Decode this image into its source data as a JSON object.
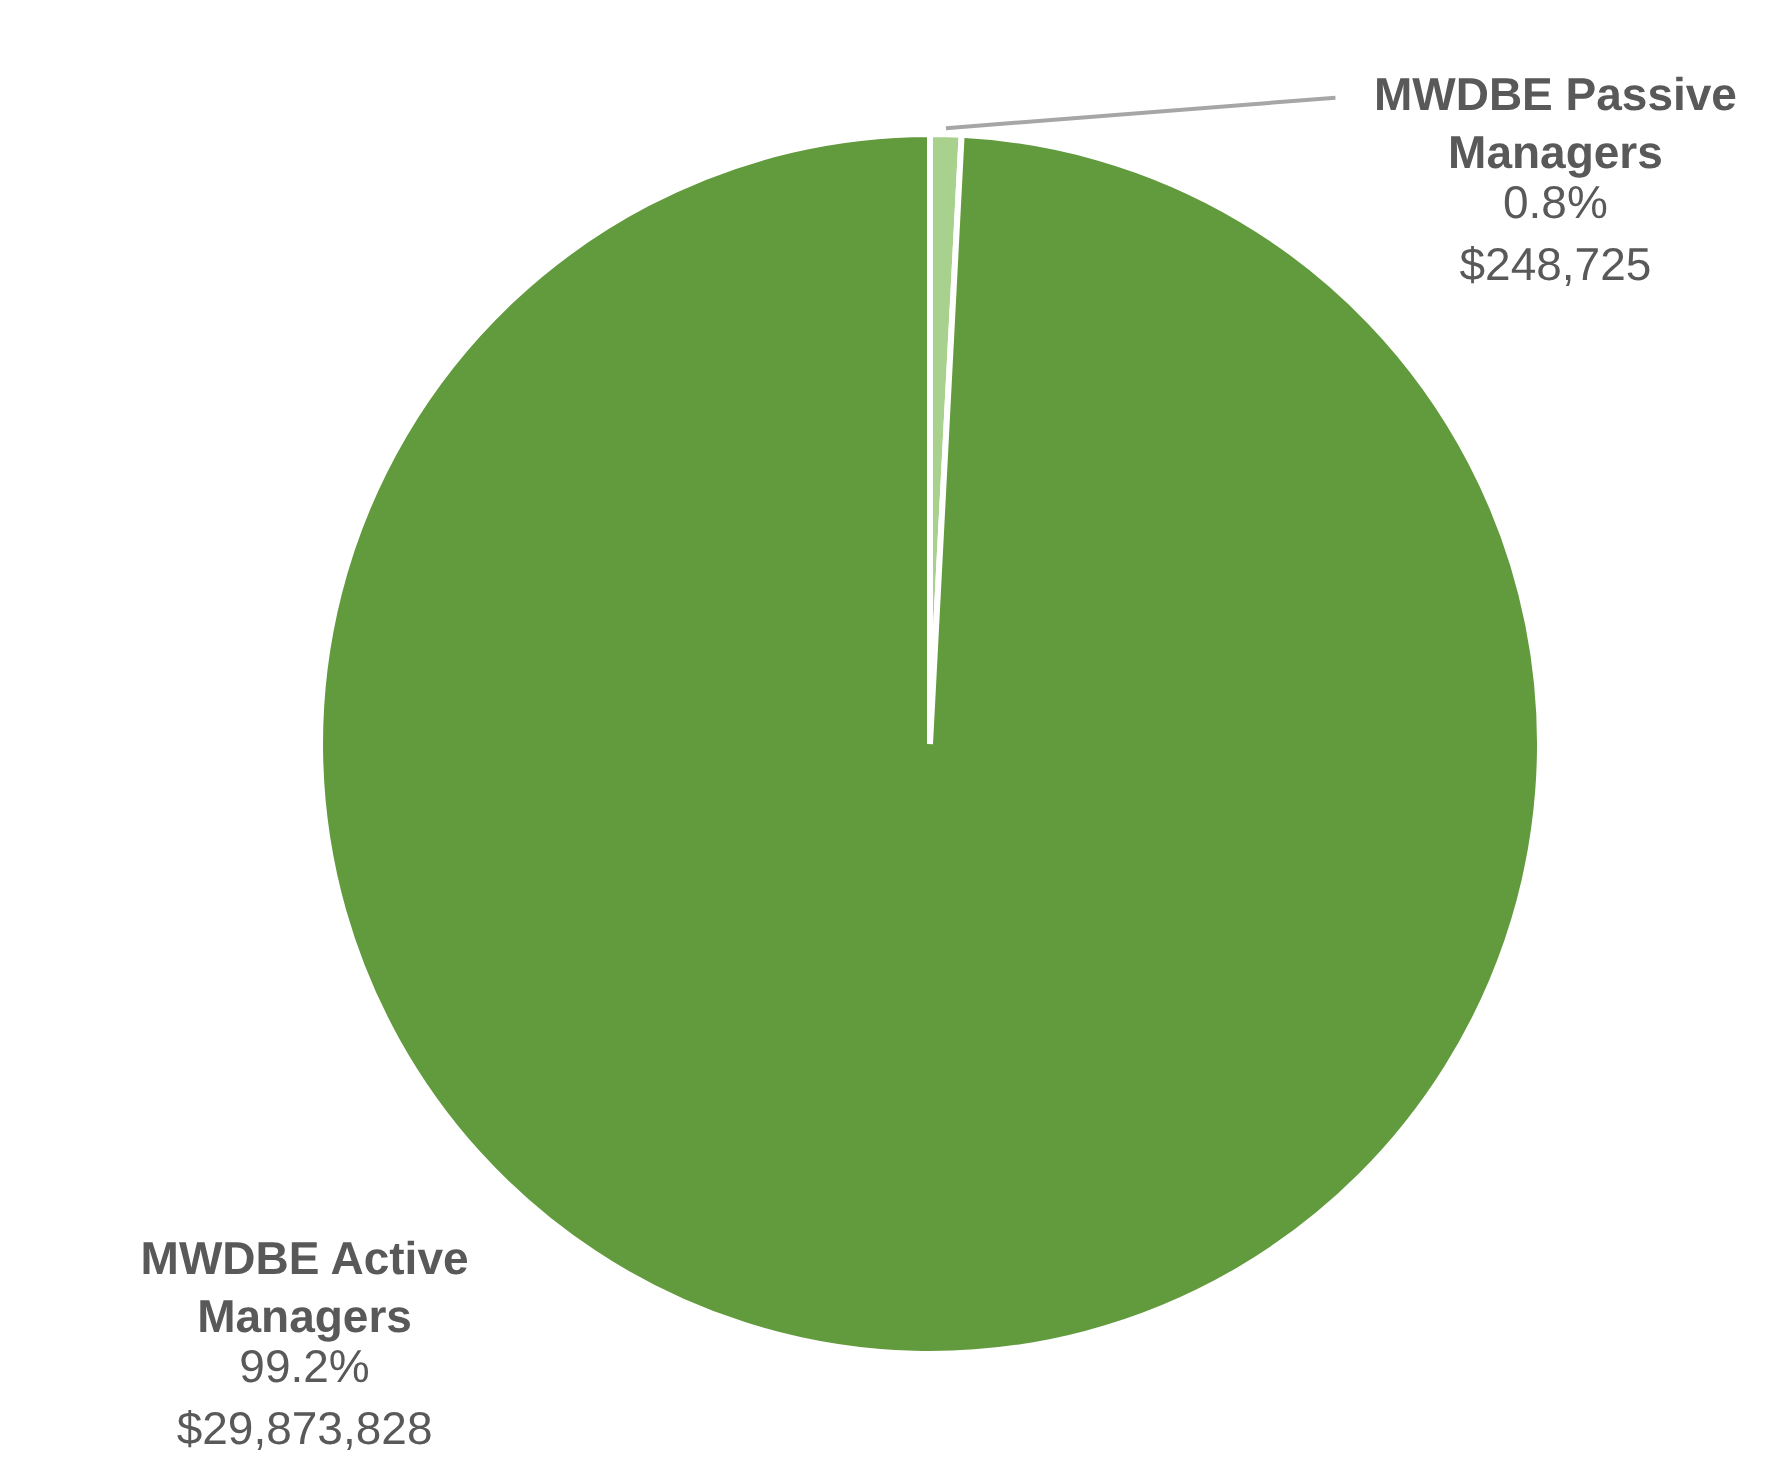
{
  "chart_data": {
    "type": "pie",
    "categories": [
      "MWDBE Passive Managers",
      "MWDBE Active Managers"
    ],
    "values": [
      248725,
      29873828
    ],
    "colors": [
      "#a9d18e",
      "#629b3d"
    ],
    "value_labels": [
      "0.8%\n$248,725",
      "99.2%\n$29,873,828"
    ]
  }
}
